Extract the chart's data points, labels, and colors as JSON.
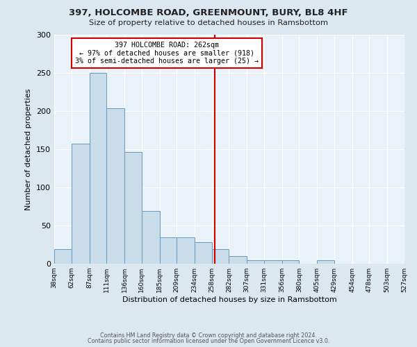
{
  "title1": "397, HOLCOMBE ROAD, GREENMOUNT, BURY, BL8 4HF",
  "title2": "Size of property relative to detached houses in Ramsbottom",
  "xlabel": "Distribution of detached houses by size in Ramsbottom",
  "ylabel": "Number of detached properties",
  "bar_color": "#c8dcea",
  "bar_edge_color": "#6699bb",
  "bin_edges": [
    38,
    62,
    87,
    111,
    136,
    160,
    185,
    209,
    234,
    258,
    282,
    307,
    331,
    356,
    380,
    405,
    429,
    454,
    478,
    503,
    527
  ],
  "bar_heights": [
    19,
    157,
    250,
    204,
    146,
    69,
    35,
    35,
    28,
    19,
    10,
    5,
    5,
    5,
    0,
    5,
    0,
    0,
    0,
    0
  ],
  "tick_labels": [
    "38sqm",
    "62sqm",
    "87sqm",
    "111sqm",
    "136sqm",
    "160sqm",
    "185sqm",
    "209sqm",
    "234sqm",
    "258sqm",
    "282sqm",
    "307sqm",
    "331sqm",
    "356sqm",
    "380sqm",
    "405sqm",
    "429sqm",
    "454sqm",
    "478sqm",
    "503sqm",
    "527sqm"
  ],
  "vline_x": 262,
  "vline_color": "#cc0000",
  "annotation_text": "397 HOLCOMBE ROAD: 262sqm\n← 97% of detached houses are smaller (918)\n3% of semi-detached houses are larger (25) →",
  "annotation_box_color": "#ffffff",
  "annotation_box_edge": "#cc0000",
  "ylim": [
    0,
    300
  ],
  "yticks": [
    0,
    50,
    100,
    150,
    200,
    250,
    300
  ],
  "footer1": "Contains HM Land Registry data © Crown copyright and database right 2024.",
  "footer2": "Contains public sector information licensed under the Open Government Licence v3.0.",
  "bg_color": "#dce8f0",
  "plot_bg_color": "#e8f2f8"
}
